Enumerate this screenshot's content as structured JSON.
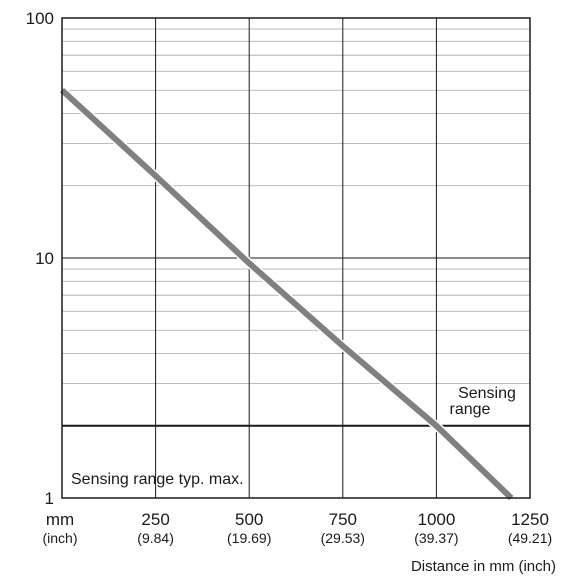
{
  "chart_data": {
    "type": "line",
    "title": "",
    "xlabel": "Distance in mm (inch)",
    "ylabel": "",
    "x_unit_label": "mm",
    "x_unit_sub": "(inch)",
    "xlim": [
      0,
      1250
    ],
    "ylim": [
      1,
      100
    ],
    "y_scale": "log",
    "grid": true,
    "x_ticks": [
      {
        "value": 250,
        "label": "250",
        "sub": "(9.84)"
      },
      {
        "value": 500,
        "label": "500",
        "sub": "(19.69)"
      },
      {
        "value": 750,
        "label": "750",
        "sub": "(29.53)"
      },
      {
        "value": 1000,
        "label": "1000",
        "sub": "(39.37)"
      },
      {
        "value": 1250,
        "label": "1250",
        "sub": "(49.21)"
      }
    ],
    "y_ticks": [
      {
        "value": 1,
        "label": "1"
      },
      {
        "value": 10,
        "label": "10"
      },
      {
        "value": 100,
        "label": "100"
      }
    ],
    "series": [
      {
        "x": [
          0,
          250,
          500,
          750,
          1000,
          1200
        ],
        "y": [
          50,
          22,
          9.5,
          4.3,
          2,
          1
        ],
        "color": "#808080"
      }
    ],
    "reference_lines": [
      {
        "y": 2,
        "label": "Sensing range",
        "label_lines": [
          "Sensing",
          "range"
        ]
      },
      {
        "y": 1,
        "label": "Sensing range typ. max."
      }
    ]
  }
}
